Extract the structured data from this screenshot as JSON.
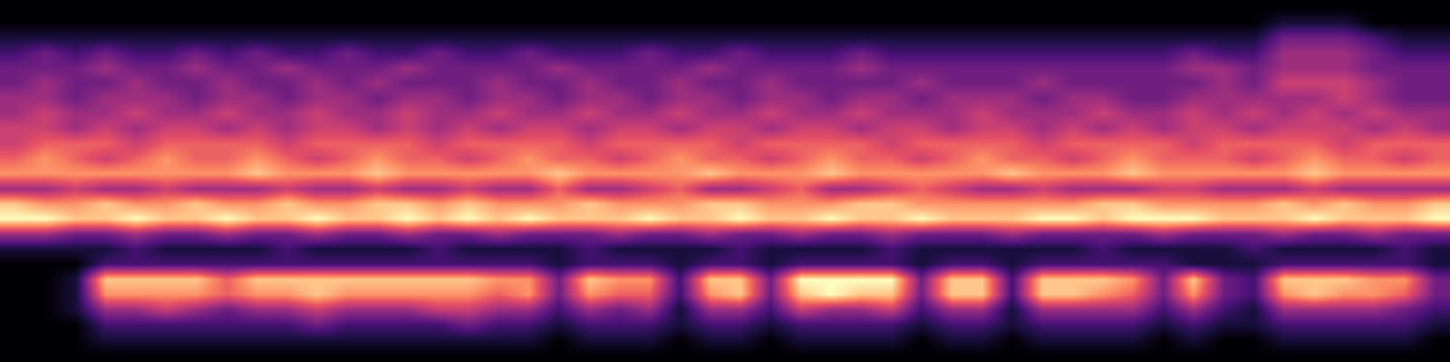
{
  "chart_data": {
    "type": "heatmap",
    "color": "magma",
    "tick_labels": false,
    "grid": false,
    "xlim": [
      -0.5,
      47.5
    ],
    "ylim": [
      23.5,
      -0.5
    ],
    "zlim": [
      0,
      9
    ],
    "z": [
      [
        0,
        0,
        0,
        0,
        0,
        0,
        0,
        0,
        0,
        0,
        0,
        0,
        0,
        0,
        0,
        0,
        0,
        0,
        0,
        0,
        0,
        0,
        0,
        0,
        0,
        0,
        0,
        0,
        0,
        0,
        0,
        0,
        0,
        0,
        0,
        0,
        0,
        0,
        0,
        0,
        0,
        0,
        0,
        0,
        0,
        0,
        0,
        0
      ],
      [
        0,
        0,
        0,
        0,
        0,
        0,
        0,
        0,
        0,
        0,
        0,
        0,
        0,
        0,
        0,
        0,
        0,
        0,
        0,
        0,
        0,
        0,
        0,
        0,
        0,
        0,
        0,
        0,
        0,
        0,
        0,
        0,
        0,
        0,
        0,
        0,
        0,
        0,
        0,
        0,
        0,
        0,
        1,
        1,
        1,
        0,
        0,
        0
      ],
      [
        1,
        1,
        1,
        1,
        1,
        1,
        1,
        1,
        1,
        1,
        1,
        1,
        1,
        1,
        1,
        1,
        1,
        1,
        1,
        1,
        1,
        1,
        1,
        1,
        1,
        1,
        1,
        1,
        1,
        1,
        1,
        1,
        1,
        1,
        1,
        1,
        1,
        1,
        1,
        1,
        1,
        1,
        3,
        3,
        3,
        2,
        1,
        1
      ],
      [
        2,
        3,
        2,
        3,
        2,
        2,
        3,
        2,
        3,
        2,
        2,
        3,
        2,
        2,
        3,
        2,
        2,
        3,
        2,
        2,
        2,
        3,
        2,
        2,
        3,
        2,
        2,
        2,
        3,
        2,
        2,
        2,
        2,
        2,
        2,
        2,
        2,
        2,
        2,
        3,
        2,
        2,
        4,
        4,
        4,
        3,
        2,
        2
      ],
      [
        3,
        3,
        3,
        4,
        3,
        3,
        4,
        3,
        3,
        4,
        3,
        3,
        3,
        4,
        3,
        3,
        3,
        3,
        4,
        3,
        3,
        3,
        3,
        4,
        3,
        3,
        3,
        3,
        4,
        3,
        3,
        3,
        3,
        3,
        3,
        3,
        3,
        3,
        3,
        4,
        4,
        3,
        4,
        4,
        4,
        3,
        3,
        3
      ],
      [
        3,
        4,
        3,
        3,
        4,
        3,
        3,
        4,
        3,
        3,
        4,
        3,
        4,
        3,
        3,
        3,
        4,
        3,
        3,
        4,
        3,
        3,
        4,
        3,
        3,
        4,
        3,
        3,
        3,
        3,
        4,
        3,
        3,
        3,
        4,
        3,
        3,
        3,
        3,
        3,
        4,
        3,
        5,
        5,
        5,
        4,
        3,
        3
      ],
      [
        4,
        4,
        3,
        4,
        4,
        4,
        3,
        4,
        4,
        3,
        4,
        4,
        3,
        4,
        4,
        3,
        4,
        4,
        3,
        4,
        4,
        3,
        4,
        4,
        3,
        4,
        4,
        3,
        4,
        4,
        3,
        4,
        4,
        4,
        3,
        4,
        4,
        3,
        3,
        4,
        4,
        4,
        4,
        4,
        5,
        4,
        3,
        3
      ],
      [
        4,
        5,
        4,
        4,
        5,
        4,
        4,
        5,
        4,
        4,
        5,
        4,
        4,
        5,
        4,
        4,
        5,
        4,
        4,
        5,
        4,
        4,
        5,
        4,
        4,
        5,
        4,
        4,
        5,
        4,
        4,
        4,
        5,
        4,
        4,
        4,
        5,
        4,
        4,
        5,
        4,
        5,
        4,
        5,
        4,
        5,
        4,
        4
      ],
      [
        5,
        5,
        4,
        5,
        4,
        5,
        5,
        4,
        5,
        4,
        5,
        5,
        4,
        5,
        4,
        5,
        4,
        5,
        5,
        4,
        5,
        5,
        4,
        5,
        5,
        4,
        5,
        5,
        4,
        5,
        5,
        4,
        5,
        5,
        4,
        5,
        4,
        5,
        4,
        5,
        5,
        4,
        5,
        5,
        5,
        4,
        5,
        4
      ],
      [
        5,
        6,
        6,
        6,
        5,
        6,
        6,
        6,
        6,
        5,
        6,
        6,
        6,
        6,
        5,
        6,
        6,
        6,
        6,
        5,
        6,
        6,
        6,
        6,
        5,
        6,
        6,
        6,
        6,
        5,
        6,
        6,
        6,
        6,
        5,
        6,
        6,
        6,
        6,
        5,
        6,
        6,
        6,
        6,
        5,
        6,
        6,
        6
      ],
      [
        6,
        7,
        6,
        5,
        6,
        7,
        6,
        6,
        7,
        6,
        5,
        6,
        7,
        6,
        6,
        5,
        6,
        7,
        6,
        6,
        5,
        6,
        7,
        6,
        6,
        5,
        6,
        7,
        6,
        6,
        5,
        6,
        7,
        6,
        6,
        5,
        6,
        7,
        6,
        6,
        6,
        5,
        6,
        7,
        6,
        6,
        5,
        6
      ],
      [
        7,
        7,
        7,
        7,
        7,
        7,
        7,
        7,
        8,
        7,
        7,
        7,
        8,
        7,
        7,
        7,
        7,
        7,
        8,
        7,
        7,
        7,
        7,
        8,
        7,
        7,
        7,
        8,
        7,
        7,
        7,
        7,
        7,
        8,
        7,
        7,
        7,
        8,
        7,
        7,
        7,
        7,
        7,
        8,
        7,
        7,
        7,
        7
      ],
      [
        4,
        4,
        5,
        4,
        4,
        5,
        4,
        4,
        4,
        5,
        4,
        4,
        5,
        4,
        4,
        5,
        4,
        4,
        6,
        4,
        4,
        5,
        6,
        4,
        4,
        5,
        6,
        4,
        4,
        5,
        6,
        5,
        4,
        4,
        5,
        4,
        4,
        4,
        5,
        5,
        4,
        4,
        4,
        5,
        4,
        4,
        4,
        4
      ],
      [
        8,
        7,
        7,
        8,
        7,
        7,
        8,
        7,
        7,
        8,
        7,
        7,
        8,
        8,
        7,
        8,
        7,
        7,
        7,
        8,
        7,
        7,
        7,
        8,
        8,
        7,
        7,
        7,
        8,
        8,
        7,
        7,
        7,
        7,
        7,
        7,
        8,
        8,
        7,
        7,
        7,
        7,
        8,
        7,
        8,
        7,
        7,
        8
      ],
      [
        9,
        9,
        8,
        8,
        9,
        8,
        8,
        9,
        8,
        8,
        9,
        8,
        8,
        9,
        8,
        9,
        8,
        9,
        8,
        8,
        8,
        9,
        8,
        8,
        9,
        8,
        8,
        9,
        8,
        8,
        9,
        8,
        8,
        8,
        9,
        9,
        8,
        9,
        9,
        9,
        8,
        8,
        8,
        9,
        8,
        8,
        8,
        9
      ],
      [
        4,
        4,
        3,
        3,
        4,
        3,
        3,
        4,
        3,
        3,
        4,
        3,
        3,
        4,
        3,
        3,
        4,
        3,
        3,
        3,
        4,
        3,
        3,
        4,
        3,
        3,
        4,
        3,
        3,
        4,
        3,
        3,
        3,
        4,
        3,
        3,
        3,
        3,
        4,
        3,
        3,
        3,
        4,
        3,
        3,
        4,
        3,
        3
      ],
      [
        1,
        1,
        1,
        1,
        2,
        1,
        1,
        1,
        1,
        2,
        1,
        1,
        1,
        1,
        2,
        1,
        1,
        1,
        1,
        2,
        1,
        1,
        1,
        1,
        2,
        1,
        1,
        1,
        1,
        2,
        1,
        1,
        1,
        1,
        1,
        1,
        2,
        1,
        1,
        1,
        1,
        2,
        1,
        1,
        1,
        1,
        2,
        1
      ],
      [
        0,
        0,
        0,
        2,
        2,
        2,
        2,
        2,
        2,
        2,
        2,
        2,
        2,
        2,
        2,
        2,
        2,
        2,
        1,
        2,
        2,
        2,
        1,
        2,
        2,
        1,
        2,
        2,
        2,
        2,
        1,
        2,
        2,
        1,
        2,
        2,
        2,
        2,
        2,
        1,
        1,
        1,
        2,
        2,
        2,
        2,
        2,
        1
      ],
      [
        0,
        0,
        1,
        8,
        8,
        8,
        8,
        6,
        8,
        8,
        8,
        8,
        8,
        8,
        8,
        8,
        7,
        7,
        3,
        8,
        7,
        7,
        2,
        8,
        8,
        3,
        9,
        9,
        9,
        9,
        3,
        8,
        8,
        2,
        8,
        8,
        8,
        7,
        3,
        8,
        3,
        2,
        8,
        8,
        8,
        7,
        7,
        3
      ],
      [
        0,
        0,
        1,
        7,
        7,
        7,
        7,
        6,
        7,
        7,
        8,
        7,
        7,
        7,
        7,
        7,
        6,
        7,
        3,
        7,
        6,
        6,
        2,
        7,
        8,
        3,
        8,
        9,
        8,
        8,
        3,
        8,
        8,
        2,
        8,
        8,
        7,
        6,
        3,
        7,
        3,
        2,
        7,
        8,
        7,
        7,
        6,
        3
      ],
      [
        0,
        0,
        1,
        4,
        4,
        5,
        4,
        3,
        4,
        4,
        5,
        4,
        4,
        4,
        5,
        5,
        4,
        4,
        2,
        4,
        3,
        4,
        1,
        4,
        4,
        2,
        5,
        4,
        4,
        5,
        2,
        4,
        4,
        1,
        4,
        4,
        4,
        4,
        2,
        4,
        2,
        1,
        4,
        4,
        4,
        4,
        3,
        2
      ],
      [
        0,
        0,
        0,
        2,
        2,
        2,
        2,
        2,
        2,
        2,
        3,
        2,
        2,
        2,
        2,
        3,
        2,
        2,
        1,
        2,
        2,
        2,
        1,
        2,
        2,
        1,
        2,
        2,
        2,
        2,
        1,
        2,
        2,
        1,
        2,
        2,
        2,
        2,
        1,
        2,
        1,
        1,
        2,
        2,
        2,
        2,
        2,
        1
      ],
      [
        0,
        0,
        0,
        1,
        1,
        1,
        1,
        1,
        1,
        1,
        1,
        1,
        1,
        1,
        1,
        1,
        1,
        1,
        0,
        1,
        1,
        1,
        0,
        1,
        1,
        0,
        1,
        1,
        1,
        1,
        0,
        1,
        1,
        0,
        1,
        1,
        1,
        1,
        0,
        1,
        0,
        0,
        1,
        1,
        1,
        1,
        1,
        0
      ],
      [
        0,
        0,
        0,
        0,
        0,
        0,
        0,
        0,
        0,
        0,
        0,
        0,
        0,
        0,
        0,
        0,
        0,
        0,
        0,
        0,
        0,
        0,
        0,
        0,
        0,
        0,
        0,
        0,
        0,
        0,
        0,
        0,
        0,
        0,
        0,
        0,
        0,
        0,
        0,
        0,
        0,
        0,
        0,
        0,
        0,
        0,
        0,
        0
      ]
    ]
  }
}
